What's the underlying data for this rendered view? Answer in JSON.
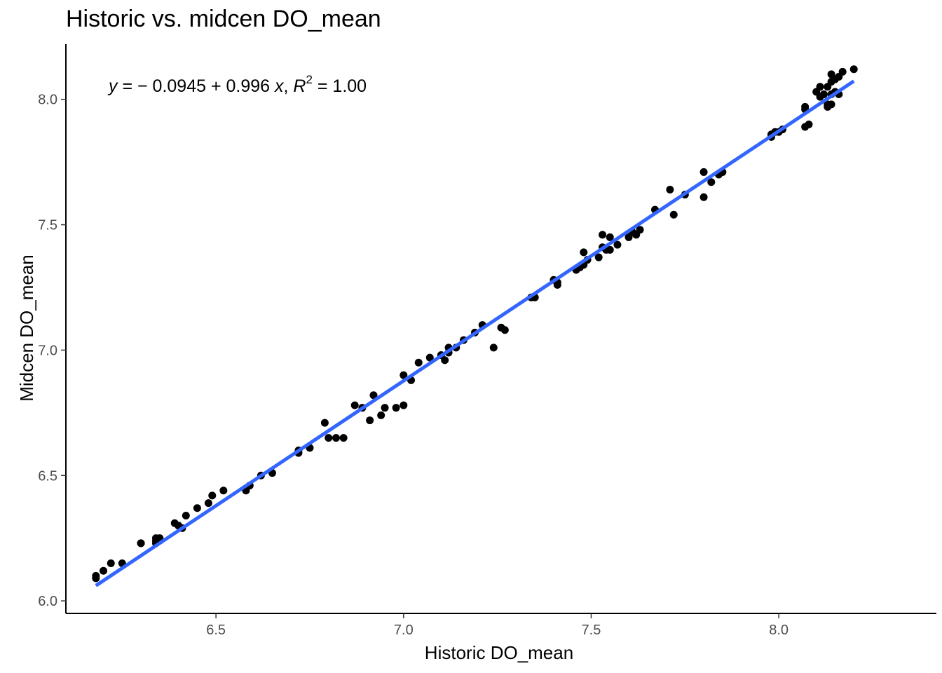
{
  "chart_data": {
    "type": "scatter",
    "title": "Historic vs. midcen DO_mean",
    "xlabel": "Historic DO_mean",
    "ylabel": "Midcen DO_mean",
    "xlim": [
      6.1,
      8.42
    ],
    "ylim": [
      5.95,
      8.22
    ],
    "xticks": [
      6.5,
      7.0,
      7.5,
      8.0
    ],
    "xtick_labels": [
      "6.5",
      "7.0",
      "7.5",
      "8.0"
    ],
    "yticks": [
      6.0,
      6.5,
      7.0,
      7.5,
      8.0
    ],
    "ytick_labels": [
      "6.0",
      "6.5",
      "7.0",
      "7.5",
      "8.0"
    ],
    "grid": false,
    "annotation": {
      "y_var": "y",
      "eq_mid": " = − 0.0945 + 0.996 ",
      "x_var": "x",
      "sep": ", ",
      "r_var": "R",
      "r_exp": "2",
      "r_val": " = 1.00"
    },
    "fit": {
      "intercept": -0.0945,
      "slope": 0.996,
      "x_range": [
        6.18,
        8.2
      ],
      "color": "#3366ff"
    },
    "point_color": "#000000",
    "points": [
      [
        6.18,
        6.09
      ],
      [
        6.18,
        6.1
      ],
      [
        6.2,
        6.12
      ],
      [
        6.22,
        6.15
      ],
      [
        6.25,
        6.15
      ],
      [
        6.3,
        6.23
      ],
      [
        6.3,
        6.23
      ],
      [
        6.34,
        6.25
      ],
      [
        6.34,
        6.24
      ],
      [
        6.35,
        6.25
      ],
      [
        6.34,
        6.23
      ],
      [
        6.35,
        6.24
      ],
      [
        6.39,
        6.31
      ],
      [
        6.4,
        6.3
      ],
      [
        6.41,
        6.29
      ],
      [
        6.42,
        6.34
      ],
      [
        6.45,
        6.37
      ],
      [
        6.48,
        6.39
      ],
      [
        6.49,
        6.42
      ],
      [
        6.52,
        6.44
      ],
      [
        6.58,
        6.44
      ],
      [
        6.59,
        6.46
      ],
      [
        6.62,
        6.5
      ],
      [
        6.65,
        6.51
      ],
      [
        6.72,
        6.59
      ],
      [
        6.72,
        6.6
      ],
      [
        6.75,
        6.61
      ],
      [
        6.79,
        6.71
      ],
      [
        6.8,
        6.65
      ],
      [
        6.82,
        6.65
      ],
      [
        6.84,
        6.65
      ],
      [
        6.87,
        6.78
      ],
      [
        6.89,
        6.77
      ],
      [
        6.91,
        6.72
      ],
      [
        6.92,
        6.82
      ],
      [
        6.94,
        6.74
      ],
      [
        6.95,
        6.77
      ],
      [
        6.98,
        6.77
      ],
      [
        7.0,
        6.78
      ],
      [
        7.0,
        6.9
      ],
      [
        7.02,
        6.88
      ],
      [
        7.04,
        6.95
      ],
      [
        7.07,
        6.97
      ],
      [
        7.1,
        6.98
      ],
      [
        7.11,
        6.96
      ],
      [
        7.12,
        6.99
      ],
      [
        7.12,
        7.01
      ],
      [
        7.14,
        7.01
      ],
      [
        7.16,
        7.04
      ],
      [
        7.19,
        7.07
      ],
      [
        7.21,
        7.1
      ],
      [
        7.24,
        7.01
      ],
      [
        7.26,
        7.09
      ],
      [
        7.27,
        7.08
      ],
      [
        7.34,
        7.21
      ],
      [
        7.35,
        7.21
      ],
      [
        7.4,
        7.28
      ],
      [
        7.41,
        7.27
      ],
      [
        7.41,
        7.26
      ],
      [
        7.46,
        7.32
      ],
      [
        7.47,
        7.33
      ],
      [
        7.48,
        7.34
      ],
      [
        7.48,
        7.39
      ],
      [
        7.49,
        7.36
      ],
      [
        7.52,
        7.37
      ],
      [
        7.53,
        7.46
      ],
      [
        7.53,
        7.41
      ],
      [
        7.54,
        7.4
      ],
      [
        7.55,
        7.45
      ],
      [
        7.55,
        7.4
      ],
      [
        7.57,
        7.42
      ],
      [
        7.6,
        7.45
      ],
      [
        7.61,
        7.47
      ],
      [
        7.62,
        7.46
      ],
      [
        7.63,
        7.48
      ],
      [
        7.67,
        7.56
      ],
      [
        7.71,
        7.64
      ],
      [
        7.72,
        7.54
      ],
      [
        7.75,
        7.62
      ],
      [
        7.8,
        7.71
      ],
      [
        7.8,
        7.61
      ],
      [
        7.82,
        7.67
      ],
      [
        7.84,
        7.7
      ],
      [
        7.85,
        7.71
      ],
      [
        7.98,
        7.85
      ],
      [
        7.98,
        7.86
      ],
      [
        7.99,
        7.87
      ],
      [
        8.0,
        7.87
      ],
      [
        8.01,
        7.88
      ],
      [
        8.07,
        7.89
      ],
      [
        8.08,
        7.9
      ],
      [
        8.07,
        7.96
      ],
      [
        8.07,
        7.97
      ],
      [
        8.1,
        8.03
      ],
      [
        8.11,
        8.01
      ],
      [
        8.11,
        8.05
      ],
      [
        8.12,
        8.02
      ],
      [
        8.13,
        7.98
      ],
      [
        8.13,
        7.97
      ],
      [
        8.13,
        8.05
      ],
      [
        8.14,
        8.07
      ],
      [
        8.14,
        8.1
      ],
      [
        8.14,
        8.02
      ],
      [
        8.15,
        8.03
      ],
      [
        8.15,
        8.08
      ],
      [
        8.16,
        8.02
      ],
      [
        8.16,
        8.09
      ],
      [
        8.17,
        8.11
      ],
      [
        8.2,
        8.12
      ],
      [
        8.14,
        7.98
      ]
    ]
  }
}
